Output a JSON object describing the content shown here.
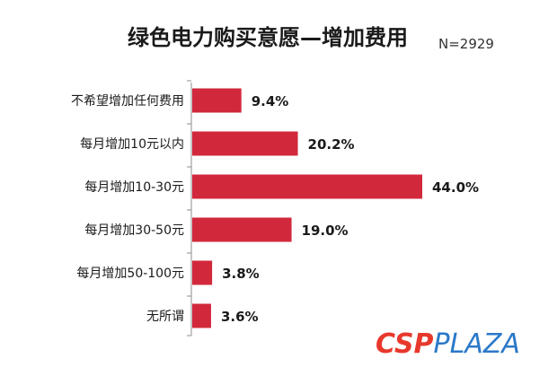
{
  "chart_data": {
    "type": "bar",
    "orientation": "horizontal",
    "title": "绿色电力购买意愿—增加费用",
    "subtitle": "N=2929",
    "categories": [
      "不希望增加任何费用",
      "每月增加10元以内",
      "每月增加10-30元",
      "每月增加30-50元",
      "每月增加50-100元",
      "无所谓"
    ],
    "values": [
      9.4,
      20.2,
      44.0,
      19.0,
      3.8,
      3.6
    ],
    "value_labels": [
      "9.4%",
      "20.2%",
      "44.0%",
      "19.0%",
      "3.8%",
      "3.6%"
    ],
    "unit": "%",
    "xlim": [
      0,
      44.0
    ],
    "grid": false,
    "legend": "none",
    "bar_color": "#d2283c"
  },
  "logo": {
    "part1": "CSP",
    "part2": "PLAZA",
    "colors": {
      "part1": "#e8382c",
      "part2": "#2a78c8"
    }
  }
}
